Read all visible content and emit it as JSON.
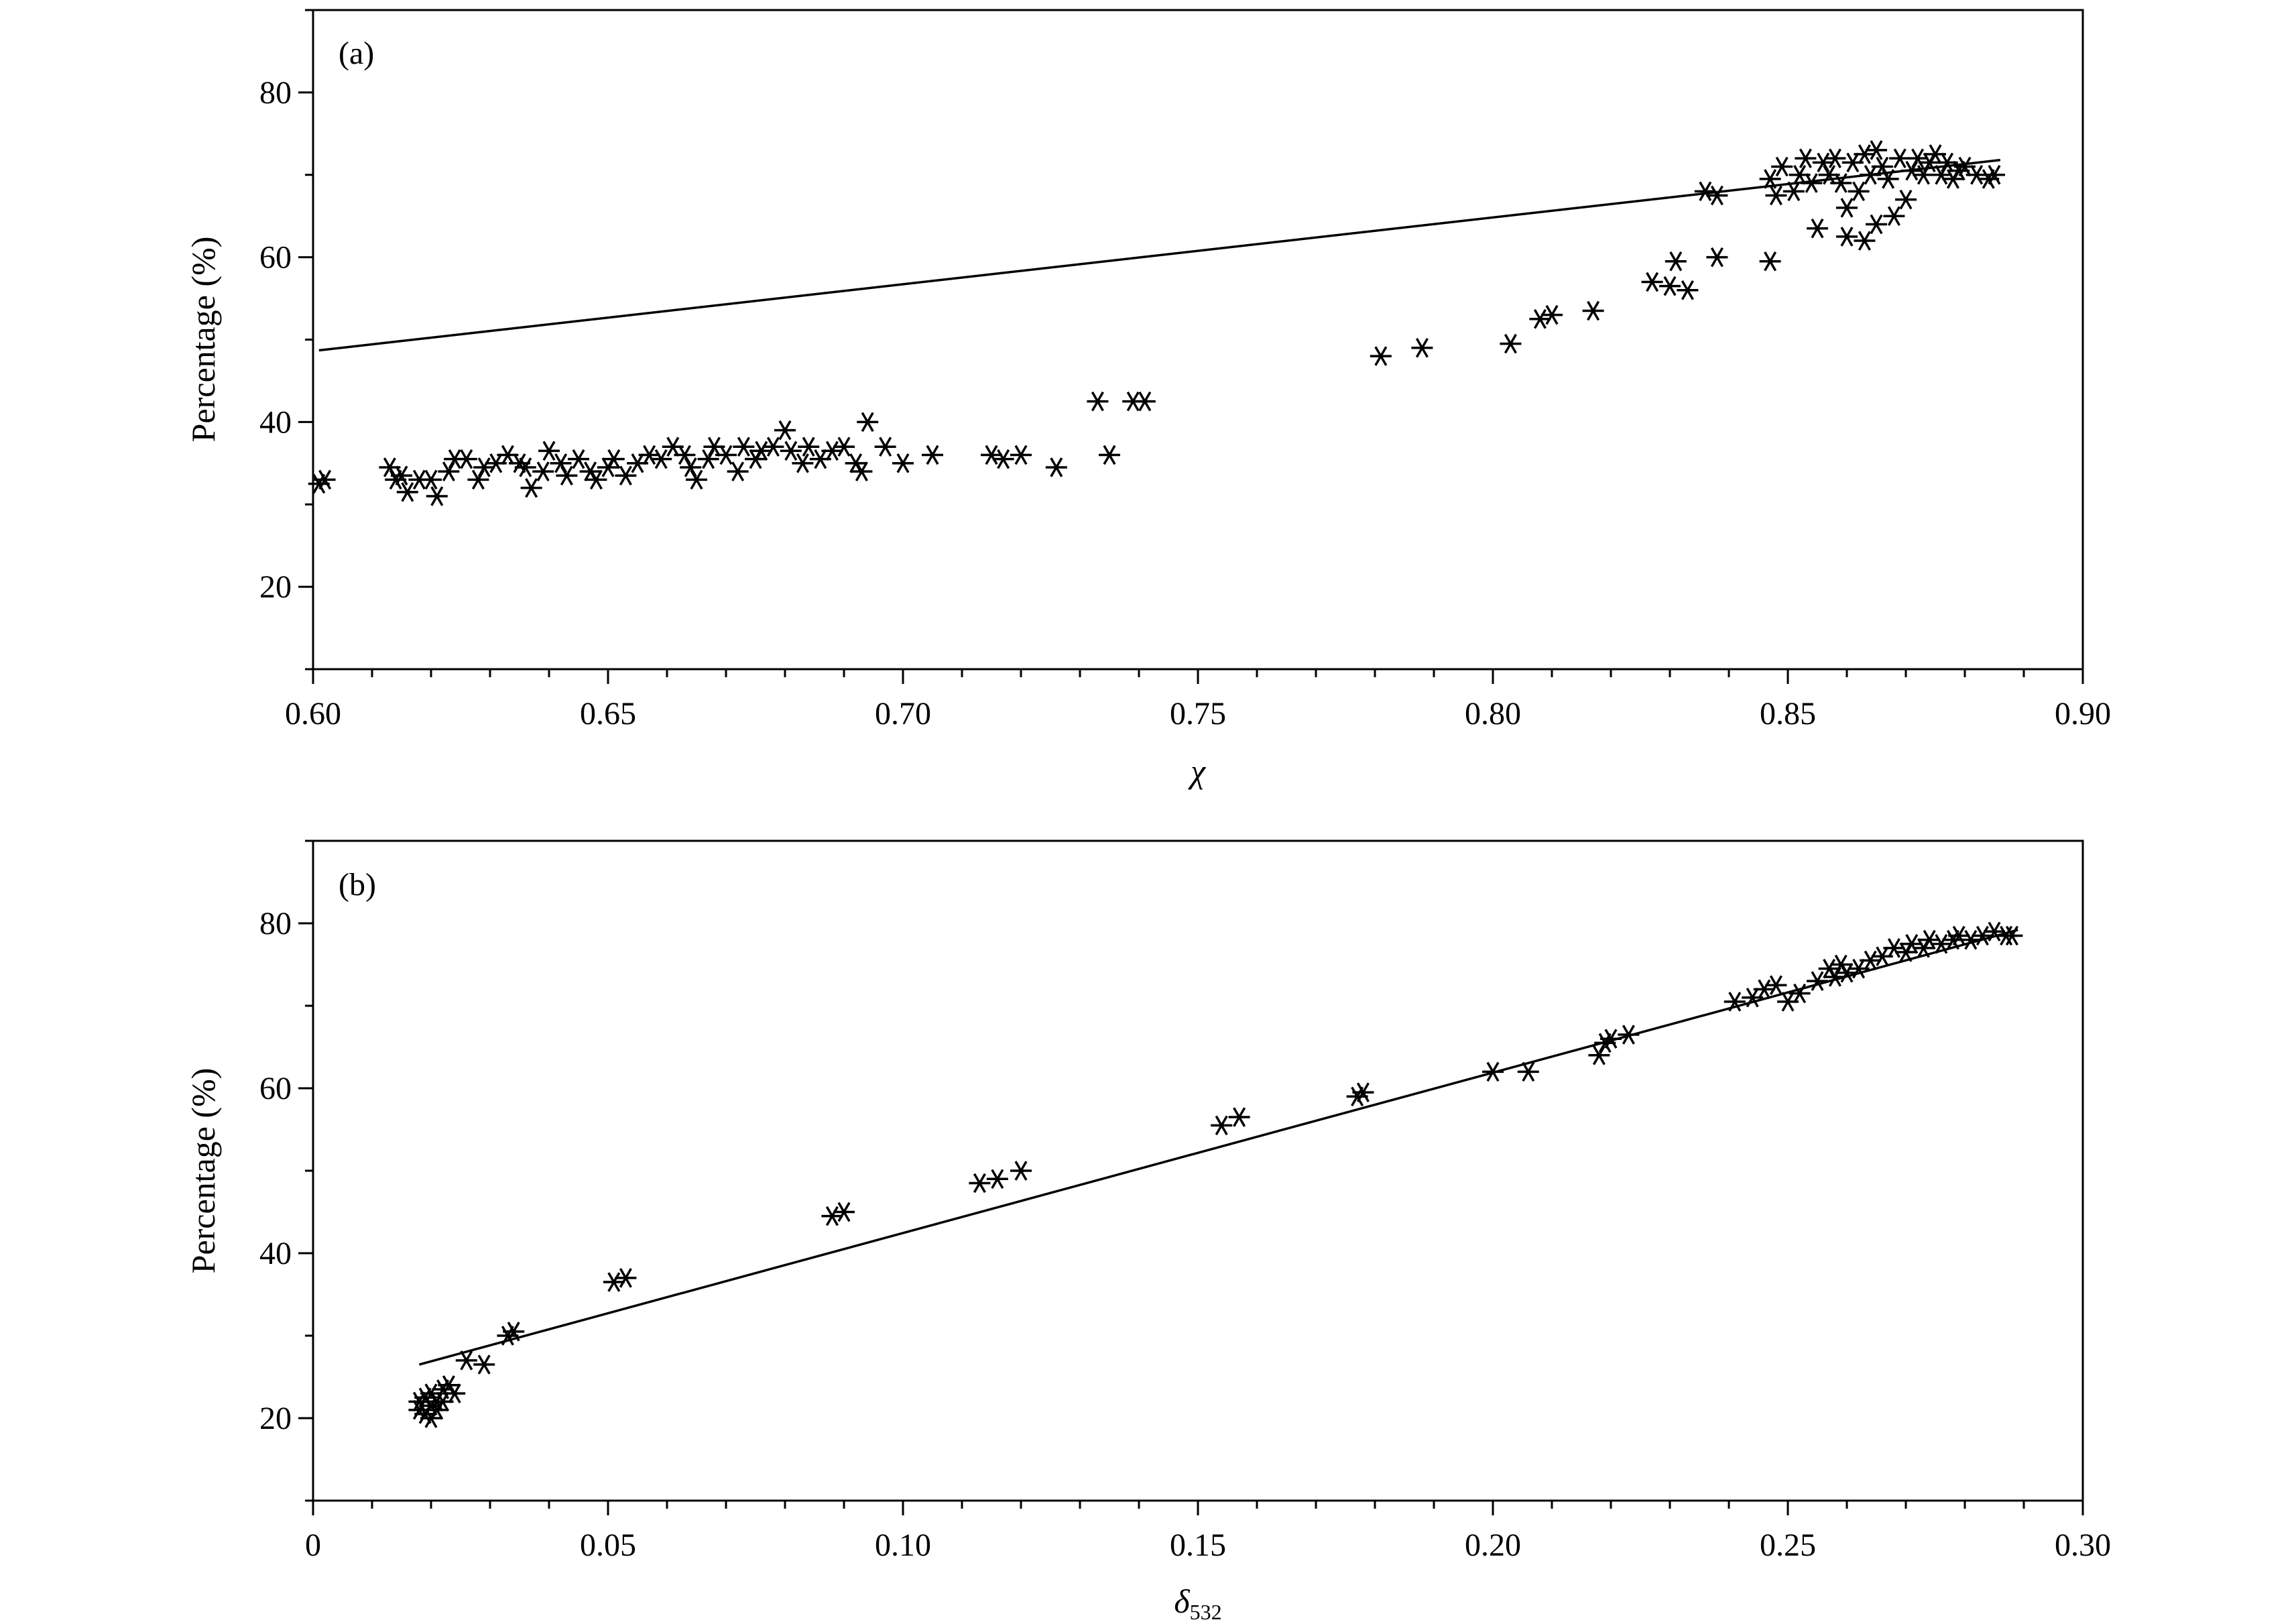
{
  "chart_data": [
    {
      "panel": "(a)",
      "type": "scatter",
      "title": "",
      "xlabel": "χ",
      "ylabel": "Percentage (%)",
      "xlim": [
        0.6,
        0.9
      ],
      "ylim": [
        10,
        90
      ],
      "xticks": [
        "0.60",
        "0.65",
        "0.70",
        "0.75",
        "0.80",
        "0.85",
        "0.90"
      ],
      "yticks": [
        "20",
        "40",
        "60",
        "80"
      ],
      "grid": false,
      "marker": "asterisk",
      "series": [
        {
          "points": [
            [
              0.601,
              32.5
            ],
            [
              0.602,
              33.0
            ],
            [
              0.613,
              34.5
            ],
            [
              0.614,
              33.0
            ],
            [
              0.615,
              33.5
            ],
            [
              0.616,
              31.5
            ],
            [
              0.618,
              33.0
            ],
            [
              0.62,
              33.0
            ],
            [
              0.621,
              31.0
            ],
            [
              0.623,
              34.0
            ],
            [
              0.624,
              35.5
            ],
            [
              0.626,
              35.5
            ],
            [
              0.628,
              33.0
            ],
            [
              0.629,
              34.5
            ],
            [
              0.631,
              35.0
            ],
            [
              0.633,
              36.0
            ],
            [
              0.635,
              35.0
            ],
            [
              0.636,
              34.5
            ],
            [
              0.637,
              32.0
            ],
            [
              0.639,
              34.0
            ],
            [
              0.64,
              36.5
            ],
            [
              0.642,
              35.0
            ],
            [
              0.643,
              33.5
            ],
            [
              0.645,
              35.5
            ],
            [
              0.647,
              34.0
            ],
            [
              0.648,
              33.0
            ],
            [
              0.65,
              34.5
            ],
            [
              0.651,
              35.5
            ],
            [
              0.653,
              33.5
            ],
            [
              0.655,
              35.0
            ],
            [
              0.657,
              36.0
            ],
            [
              0.659,
              35.5
            ],
            [
              0.661,
              37.0
            ],
            [
              0.663,
              36.0
            ],
            [
              0.664,
              34.5
            ],
            [
              0.665,
              33.0
            ],
            [
              0.667,
              35.5
            ],
            [
              0.668,
              37.0
            ],
            [
              0.67,
              36.0
            ],
            [
              0.672,
              34.0
            ],
            [
              0.673,
              37.0
            ],
            [
              0.675,
              35.5
            ],
            [
              0.676,
              36.5
            ],
            [
              0.678,
              37.0
            ],
            [
              0.68,
              39.0
            ],
            [
              0.681,
              36.5
            ],
            [
              0.683,
              35.0
            ],
            [
              0.684,
              37.0
            ],
            [
              0.686,
              35.5
            ],
            [
              0.688,
              36.5
            ],
            [
              0.69,
              37.0
            ],
            [
              0.692,
              35.0
            ],
            [
              0.693,
              34.0
            ],
            [
              0.694,
              40.0
            ],
            [
              0.697,
              37.0
            ],
            [
              0.7,
              35.0
            ],
            [
              0.705,
              36.0
            ],
            [
              0.715,
              36.0
            ],
            [
              0.717,
              35.5
            ],
            [
              0.72,
              36.0
            ],
            [
              0.726,
              34.5
            ],
            [
              0.733,
              42.5
            ],
            [
              0.735,
              36.0
            ],
            [
              0.739,
              42.5
            ],
            [
              0.741,
              42.5
            ],
            [
              0.781,
              48.0
            ],
            [
              0.788,
              49.0
            ],
            [
              0.803,
              49.5
            ],
            [
              0.808,
              52.5
            ],
            [
              0.81,
              53.0
            ],
            [
              0.817,
              53.5
            ],
            [
              0.827,
              57.0
            ],
            [
              0.83,
              56.5
            ],
            [
              0.831,
              59.5
            ],
            [
              0.833,
              56.0
            ],
            [
              0.836,
              68.0
            ],
            [
              0.838,
              67.5
            ],
            [
              0.838,
              60.0
            ],
            [
              0.847,
              59.5
            ],
            [
              0.847,
              69.5
            ],
            [
              0.848,
              67.5
            ],
            [
              0.849,
              71.0
            ],
            [
              0.851,
              68.0
            ],
            [
              0.852,
              70.0
            ],
            [
              0.853,
              72.0
            ],
            [
              0.854,
              69.0
            ],
            [
              0.855,
              63.5
            ],
            [
              0.856,
              71.5
            ],
            [
              0.857,
              70.0
            ],
            [
              0.858,
              72.0
            ],
            [
              0.859,
              69.0
            ],
            [
              0.86,
              66.0
            ],
            [
              0.86,
              62.5
            ],
            [
              0.861,
              71.5
            ],
            [
              0.862,
              68.0
            ],
            [
              0.863,
              72.5
            ],
            [
              0.863,
              62.0
            ],
            [
              0.864,
              70.0
            ],
            [
              0.865,
              73.0
            ],
            [
              0.865,
              64.0
            ],
            [
              0.866,
              71.0
            ],
            [
              0.867,
              69.5
            ],
            [
              0.868,
              65.0
            ],
            [
              0.869,
              72.0
            ],
            [
              0.87,
              67.0
            ],
            [
              0.871,
              70.5
            ],
            [
              0.872,
              72.0
            ],
            [
              0.873,
              70.0
            ],
            [
              0.874,
              71.5
            ],
            [
              0.875,
              72.5
            ],
            [
              0.876,
              70.0
            ],
            [
              0.877,
              71.5
            ],
            [
              0.878,
              69.5
            ],
            [
              0.879,
              70.5
            ],
            [
              0.88,
              71.0
            ],
            [
              0.882,
              70.0
            ],
            [
              0.884,
              69.5
            ],
            [
              0.885,
              70.0
            ]
          ]
        },
        {
          "type": "line",
          "points": [
            [
              0.601,
              48.7
            ],
            [
              0.886,
              71.8
            ]
          ]
        }
      ]
    },
    {
      "panel": "(b)",
      "type": "scatter",
      "title": "",
      "xlabel": "δ",
      "xlabel_subscript": "532",
      "ylabel": "Percentage (%)",
      "xlim": [
        0.0,
        0.3
      ],
      "ylim": [
        10,
        90
      ],
      "xticks": [
        "0",
        "0.05",
        "0.10",
        "0.15",
        "0.20",
        "0.25",
        "0.30"
      ],
      "yticks": [
        "20",
        "40",
        "60",
        "80"
      ],
      "grid": false,
      "marker": "asterisk",
      "series": [
        {
          "points": [
            [
              0.018,
              21.0
            ],
            [
              0.018,
              22.0
            ],
            [
              0.019,
              20.5
            ],
            [
              0.019,
              22.5
            ],
            [
              0.02,
              21.5
            ],
            [
              0.02,
              23.0
            ],
            [
              0.02,
              20.0
            ],
            [
              0.021,
              22.0
            ],
            [
              0.021,
              21.0
            ],
            [
              0.022,
              23.5
            ],
            [
              0.022,
              22.0
            ],
            [
              0.023,
              24.0
            ],
            [
              0.024,
              23.0
            ],
            [
              0.026,
              27.0
            ],
            [
              0.029,
              26.5
            ],
            [
              0.033,
              30.0
            ],
            [
              0.034,
              30.5
            ],
            [
              0.051,
              36.5
            ],
            [
              0.053,
              37.0
            ],
            [
              0.088,
              44.5
            ],
            [
              0.09,
              45.0
            ],
            [
              0.113,
              48.5
            ],
            [
              0.116,
              49.0
            ],
            [
              0.12,
              50.0
            ],
            [
              0.154,
              55.5
            ],
            [
              0.157,
              56.5
            ],
            [
              0.177,
              59.0
            ],
            [
              0.178,
              59.5
            ],
            [
              0.2,
              62.0
            ],
            [
              0.206,
              62.0
            ],
            [
              0.218,
              64.0
            ],
            [
              0.219,
              65.5
            ],
            [
              0.22,
              66.0
            ],
            [
              0.223,
              66.5
            ],
            [
              0.241,
              70.5
            ],
            [
              0.244,
              71.0
            ],
            [
              0.246,
              72.0
            ],
            [
              0.248,
              72.5
            ],
            [
              0.25,
              70.5
            ],
            [
              0.252,
              71.5
            ],
            [
              0.255,
              73.0
            ],
            [
              0.257,
              74.5
            ],
            [
              0.258,
              73.5
            ],
            [
              0.259,
              75.0
            ],
            [
              0.26,
              74.0
            ],
            [
              0.262,
              74.5
            ],
            [
              0.264,
              75.5
            ],
            [
              0.266,
              76.0
            ],
            [
              0.268,
              77.0
            ],
            [
              0.27,
              76.5
            ],
            [
              0.271,
              77.5
            ],
            [
              0.273,
              77.0
            ],
            [
              0.274,
              78.0
            ],
            [
              0.276,
              77.5
            ],
            [
              0.278,
              78.0
            ],
            [
              0.279,
              78.5
            ],
            [
              0.281,
              78.0
            ],
            [
              0.283,
              78.5
            ],
            [
              0.285,
              79.0
            ],
            [
              0.287,
              78.5
            ],
            [
              0.288,
              78.5
            ]
          ]
        },
        {
          "type": "line",
          "points": [
            [
              0.018,
              26.5
            ],
            [
              0.289,
              79.2
            ]
          ]
        }
      ]
    }
  ]
}
